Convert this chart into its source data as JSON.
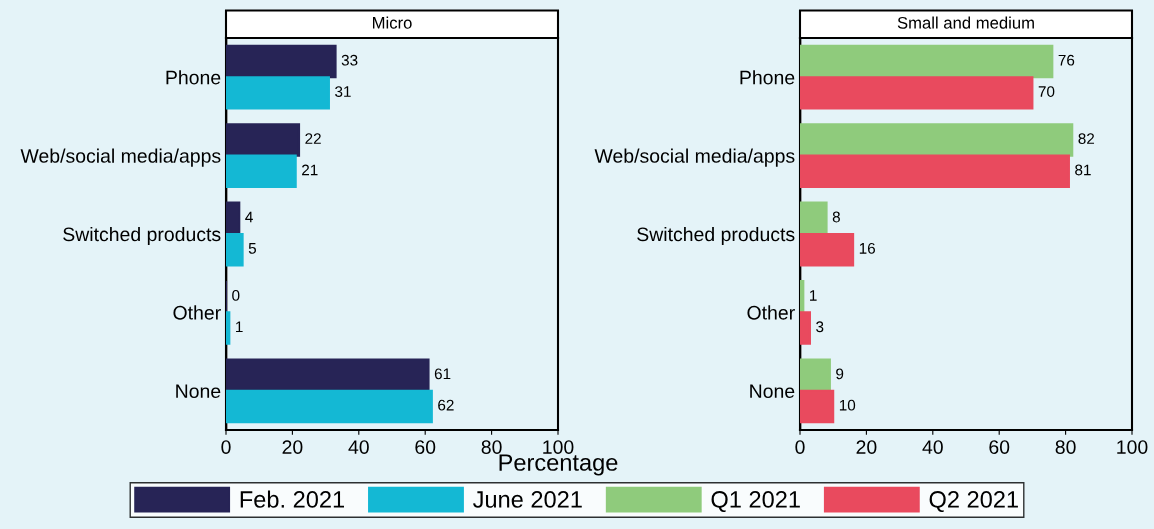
{
  "chart_data": [
    {
      "type": "bar",
      "orientation": "horizontal",
      "title": "Micro",
      "xlabel": "Percentage",
      "categories": [
        "Phone",
        "Web/social media/apps",
        "Switched products",
        "Other",
        "None"
      ],
      "xlim": [
        0,
        100
      ],
      "xticks": [
        0,
        20,
        40,
        60,
        80,
        100
      ],
      "data_labels": true,
      "legend": "bottom",
      "grid": false,
      "series": [
        {
          "name": "Feb. 2021",
          "color": "#272456",
          "values": [
            33,
            22,
            4,
            0,
            61
          ]
        },
        {
          "name": "June 2021",
          "color": "#14b8d4",
          "values": [
            31,
            21,
            5,
            1,
            62
          ]
        }
      ]
    },
    {
      "type": "bar",
      "orientation": "horizontal",
      "title": "Small and medium",
      "categories": [
        "Phone",
        "Web/social media/apps",
        "Switched products",
        "Other",
        "None"
      ],
      "xlim": [
        0,
        100
      ],
      "xticks": [
        0,
        20,
        40,
        60,
        80,
        100
      ],
      "data_labels": true,
      "legend": "bottom",
      "grid": false,
      "series": [
        {
          "name": "Q1 2021",
          "color": "#8fcb7c",
          "values": [
            76,
            82,
            8,
            1,
            9
          ]
        },
        {
          "name": "Q2 2021",
          "color": "#e94a5e",
          "values": [
            70,
            81,
            16,
            3,
            10
          ]
        }
      ]
    }
  ]
}
